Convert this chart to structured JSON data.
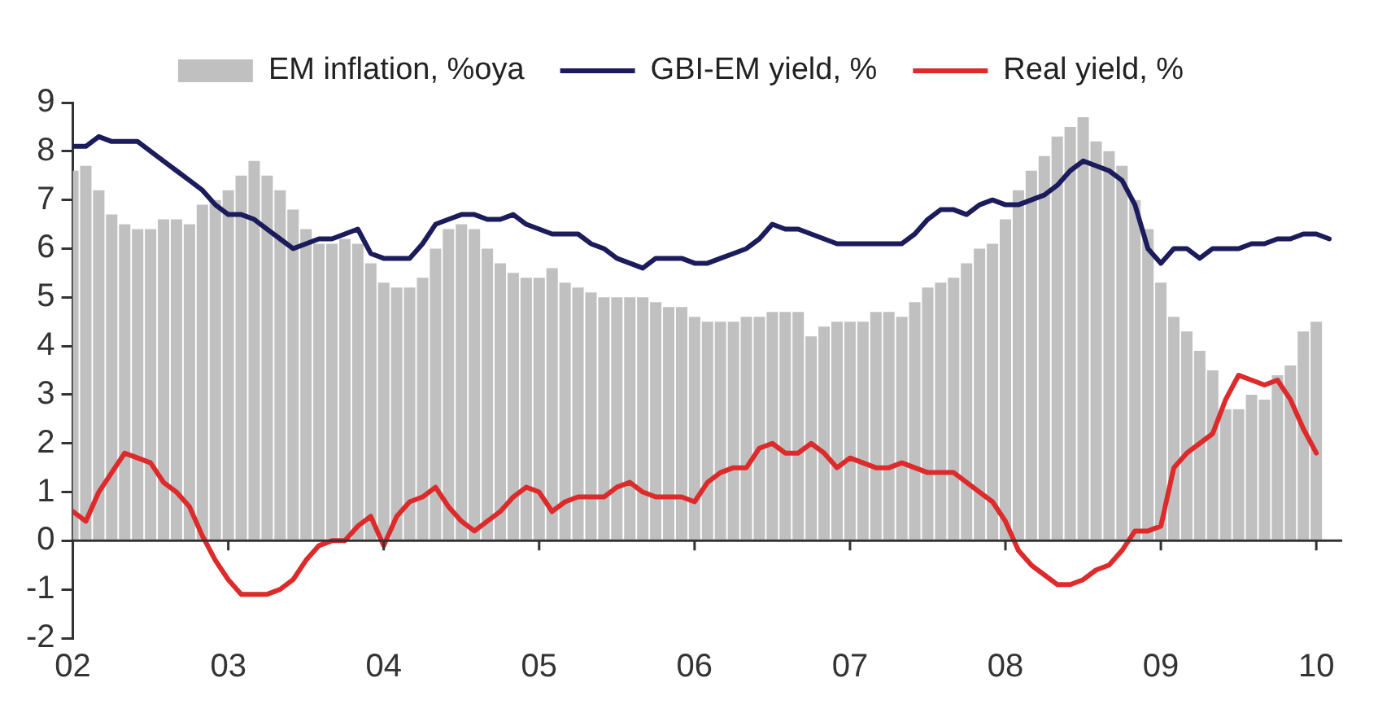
{
  "chart_data": {
    "type": "bar",
    "x": [
      "2002-01",
      "2002-02",
      "2002-03",
      "2002-04",
      "2002-05",
      "2002-06",
      "2002-07",
      "2002-08",
      "2002-09",
      "2002-10",
      "2002-11",
      "2002-12",
      "2003-01",
      "2003-02",
      "2003-03",
      "2003-04",
      "2003-05",
      "2003-06",
      "2003-07",
      "2003-08",
      "2003-09",
      "2003-10",
      "2003-11",
      "2003-12",
      "2004-01",
      "2004-02",
      "2004-03",
      "2004-04",
      "2004-05",
      "2004-06",
      "2004-07",
      "2004-08",
      "2004-09",
      "2004-10",
      "2004-11",
      "2004-12",
      "2005-01",
      "2005-02",
      "2005-03",
      "2005-04",
      "2005-05",
      "2005-06",
      "2005-07",
      "2005-08",
      "2005-09",
      "2005-10",
      "2005-11",
      "2005-12",
      "2006-01",
      "2006-02",
      "2006-03",
      "2006-04",
      "2006-05",
      "2006-06",
      "2006-07",
      "2006-08",
      "2006-09",
      "2006-10",
      "2006-11",
      "2006-12",
      "2007-01",
      "2007-02",
      "2007-03",
      "2007-04",
      "2007-05",
      "2007-06",
      "2007-07",
      "2007-08",
      "2007-09",
      "2007-10",
      "2007-11",
      "2007-12",
      "2008-01",
      "2008-02",
      "2008-03",
      "2008-04",
      "2008-05",
      "2008-06",
      "2008-07",
      "2008-08",
      "2008-09",
      "2008-10",
      "2008-11",
      "2008-12",
      "2009-01",
      "2009-02",
      "2009-03",
      "2009-04",
      "2009-05",
      "2009-06",
      "2009-07",
      "2009-08",
      "2009-09",
      "2009-10",
      "2009-11",
      "2009-12",
      "2010-01",
      "2010-02"
    ],
    "series": [
      {
        "name": "EM inflation, %oya",
        "color": "#c0c0c0",
        "values": [
          7.6,
          7.7,
          7.2,
          6.7,
          6.5,
          6.4,
          6.4,
          6.6,
          6.6,
          6.5,
          6.9,
          7.0,
          7.2,
          7.5,
          7.8,
          7.5,
          7.2,
          6.8,
          6.4,
          6.1,
          6.1,
          6.2,
          6.1,
          5.7,
          5.3,
          5.2,
          5.2,
          5.4,
          6.0,
          6.4,
          6.5,
          6.4,
          6.0,
          5.7,
          5.5,
          5.4,
          5.4,
          5.6,
          5.3,
          5.2,
          5.1,
          5.0,
          5.0,
          5.0,
          5.0,
          4.9,
          4.8,
          4.8,
          4.6,
          4.5,
          4.5,
          4.5,
          4.6,
          4.6,
          4.7,
          4.7,
          4.7,
          4.2,
          4.4,
          4.5,
          4.5,
          4.5,
          4.7,
          4.7,
          4.6,
          4.9,
          5.2,
          5.3,
          5.4,
          5.7,
          6.0,
          6.1,
          6.6,
          7.2,
          7.6,
          7.9,
          8.3,
          8.5,
          8.7,
          8.2,
          8.0,
          7.7,
          7.0,
          6.4,
          5.3,
          4.6,
          4.3,
          3.9,
          3.5,
          2.7,
          2.7,
          3.0,
          2.9,
          3.4,
          3.6,
          4.3,
          4.5,
          null
        ]
      },
      {
        "name": "GBI-EM yield, %",
        "type": "line",
        "color": "#1c1c5c",
        "values": [
          8.1,
          8.1,
          8.3,
          8.2,
          8.2,
          8.2,
          8.0,
          7.8,
          7.6,
          7.4,
          7.2,
          6.9,
          6.7,
          6.7,
          6.6,
          6.4,
          6.2,
          6.0,
          6.1,
          6.2,
          6.2,
          6.3,
          6.4,
          5.9,
          5.8,
          5.8,
          5.8,
          6.1,
          6.5,
          6.6,
          6.7,
          6.7,
          6.6,
          6.6,
          6.7,
          6.5,
          6.4,
          6.3,
          6.3,
          6.3,
          6.1,
          6.0,
          5.8,
          5.7,
          5.6,
          5.8,
          5.8,
          5.8,
          5.7,
          5.7,
          5.8,
          5.9,
          6.0,
          6.2,
          6.5,
          6.4,
          6.4,
          6.3,
          6.2,
          6.1,
          6.1,
          6.1,
          6.1,
          6.1,
          6.1,
          6.3,
          6.6,
          6.8,
          6.8,
          6.7,
          6.9,
          7.0,
          6.9,
          6.9,
          7.0,
          7.1,
          7.3,
          7.6,
          7.8,
          7.7,
          7.6,
          7.4,
          6.9,
          6.0,
          5.7,
          6.0,
          6.0,
          5.8,
          6.0,
          6.0,
          6.0,
          6.1,
          6.1,
          6.2,
          6.2,
          6.3,
          6.3,
          6.2
        ]
      },
      {
        "name": "Real yield, %",
        "type": "line",
        "color": "#dd2a2a",
        "values": [
          0.6,
          0.4,
          1.0,
          1.4,
          1.8,
          1.7,
          1.6,
          1.2,
          1.0,
          0.7,
          0.1,
          -0.4,
          -0.8,
          -1.1,
          -1.1,
          -1.1,
          -1.0,
          -0.8,
          -0.4,
          -0.1,
          0.0,
          0.0,
          0.3,
          0.5,
          -0.1,
          0.5,
          0.8,
          0.9,
          1.1,
          0.7,
          0.4,
          0.2,
          0.4,
          0.6,
          0.9,
          1.1,
          1.0,
          0.6,
          0.8,
          0.9,
          0.9,
          0.9,
          1.1,
          1.2,
          1.0,
          0.9,
          0.9,
          0.9,
          0.8,
          1.2,
          1.4,
          1.5,
          1.5,
          1.9,
          2.0,
          1.8,
          1.8,
          2.0,
          1.8,
          1.5,
          1.7,
          1.6,
          1.5,
          1.5,
          1.6,
          1.5,
          1.4,
          1.4,
          1.4,
          1.2,
          1.0,
          0.8,
          0.4,
          -0.2,
          -0.5,
          -0.7,
          -0.9,
          -0.9,
          -0.8,
          -0.6,
          -0.5,
          -0.2,
          0.2,
          0.2,
          0.3,
          1.5,
          1.8,
          2.0,
          2.2,
          2.9,
          3.4,
          3.3,
          3.2,
          3.3,
          2.9,
          2.3,
          1.8,
          null
        ]
      }
    ],
    "xlim": [
      "2002-01",
      "2010-03"
    ],
    "xticks": [
      {
        "value": "2002",
        "label": "02"
      },
      {
        "value": "2003",
        "label": "03"
      },
      {
        "value": "2004",
        "label": "04"
      },
      {
        "value": "2005",
        "label": "05"
      },
      {
        "value": "2006",
        "label": "06"
      },
      {
        "value": "2007",
        "label": "07"
      },
      {
        "value": "2008",
        "label": "08"
      },
      {
        "value": "2009",
        "label": "09"
      },
      {
        "value": "2010",
        "label": "10"
      }
    ],
    "ylim": [
      -2,
      9
    ],
    "yticks": [
      -2,
      -1,
      0,
      1,
      2,
      3,
      4,
      5,
      6,
      7,
      8,
      9
    ],
    "legend": "top",
    "marker": "none",
    "line_style": "solid"
  }
}
